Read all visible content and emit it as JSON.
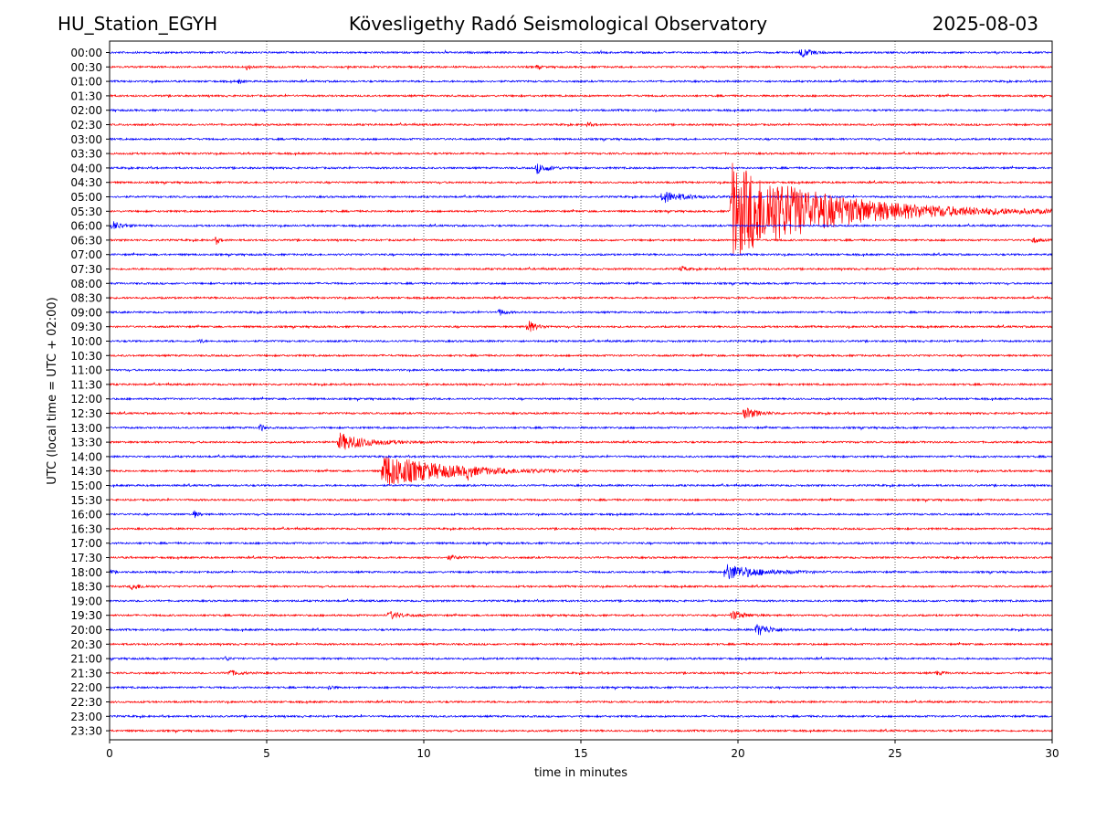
{
  "header": {
    "station": "HU_Station_EGYH",
    "observatory": "Kövesligethy Radó Seismological Observatory",
    "date": "2025-08-03"
  },
  "chart_data": {
    "type": "line",
    "title": "Kövesligethy Radó Seismological Observatory",
    "xlabel": "time in minutes",
    "ylabel": "UTC (local time = UTC + 02:00)",
    "xlim": [
      0,
      30
    ],
    "x_ticks": [
      0,
      5,
      10,
      15,
      20,
      25,
      30
    ],
    "grid": "vertical dotted at x ticks",
    "trace_colors": [
      "#0000ff",
      "#ff0000"
    ],
    "rows": [
      "00:00",
      "00:30",
      "01:00",
      "01:30",
      "02:00",
      "02:30",
      "03:00",
      "03:30",
      "04:00",
      "04:30",
      "05:00",
      "05:30",
      "06:00",
      "06:30",
      "07:00",
      "07:30",
      "08:00",
      "08:30",
      "09:00",
      "09:30",
      "10:00",
      "10:30",
      "11:00",
      "11:30",
      "12:00",
      "12:30",
      "13:00",
      "13:30",
      "14:00",
      "14:30",
      "15:00",
      "15:30",
      "16:00",
      "16:30",
      "17:00",
      "17:30",
      "18:00",
      "18:30",
      "19:00",
      "19:30",
      "20:00",
      "20:30",
      "21:00",
      "21:30",
      "22:00",
      "22:30",
      "23:00",
      "23:30"
    ],
    "events": [
      {
        "row": "00:00",
        "minute": 22.0,
        "amplitude": 0.5,
        "duration": 1.0
      },
      {
        "row": "00:30",
        "minute": 4.4,
        "amplitude": 0.4,
        "duration": 0.2
      },
      {
        "row": "00:30",
        "minute": 13.6,
        "amplitude": 0.25,
        "duration": 0.3
      },
      {
        "row": "01:00",
        "minute": 4.1,
        "amplitude": 0.25,
        "duration": 0.3
      },
      {
        "row": "02:30",
        "minute": 15.2,
        "amplitude": 0.2,
        "duration": 0.6
      },
      {
        "row": "04:00",
        "minute": 13.6,
        "amplitude": 0.5,
        "duration": 1.2
      },
      {
        "row": "05:00",
        "minute": 17.6,
        "amplitude": 0.6,
        "duration": 2.2
      },
      {
        "row": "05:30",
        "minute": 19.8,
        "amplitude": 4.8,
        "duration": 10.2
      },
      {
        "row": "06:00",
        "minute": 0.1,
        "amplitude": 0.45,
        "duration": 1.0
      },
      {
        "row": "06:30",
        "minute": 3.4,
        "amplitude": 0.4,
        "duration": 0.3
      },
      {
        "row": "06:30",
        "minute": 29.4,
        "amplitude": 0.3,
        "duration": 0.6
      },
      {
        "row": "07:30",
        "minute": 18.2,
        "amplitude": 0.3,
        "duration": 0.5
      },
      {
        "row": "09:00",
        "minute": 12.4,
        "amplitude": 0.4,
        "duration": 0.5
      },
      {
        "row": "09:30",
        "minute": 13.3,
        "amplitude": 0.7,
        "duration": 0.8
      },
      {
        "row": "10:00",
        "minute": 2.9,
        "amplitude": 0.3,
        "duration": 0.2
      },
      {
        "row": "12:30",
        "minute": 20.2,
        "amplitude": 0.6,
        "duration": 1.4
      },
      {
        "row": "13:00",
        "minute": 4.8,
        "amplitude": 0.5,
        "duration": 0.3
      },
      {
        "row": "13:30",
        "minute": 7.3,
        "amplitude": 0.9,
        "duration": 3.0
      },
      {
        "row": "14:30",
        "minute": 8.7,
        "amplitude": 1.7,
        "duration": 6.5
      },
      {
        "row": "14:30",
        "minute": 11.4,
        "amplitude": 0.6,
        "duration": 0.3
      },
      {
        "row": "16:00",
        "minute": 2.7,
        "amplitude": 0.35,
        "duration": 0.4
      },
      {
        "row": "17:30",
        "minute": 10.8,
        "amplitude": 0.25,
        "duration": 0.8
      },
      {
        "row": "18:00",
        "minute": 19.6,
        "amplitude": 0.8,
        "duration": 3.5
      },
      {
        "row": "18:00",
        "minute": 0.0,
        "amplitude": 0.3,
        "duration": 0.3
      },
      {
        "row": "18:30",
        "minute": 0.7,
        "amplitude": 0.3,
        "duration": 1.0
      },
      {
        "row": "19:30",
        "minute": 8.9,
        "amplitude": 0.4,
        "duration": 1.2
      },
      {
        "row": "19:30",
        "minute": 19.8,
        "amplitude": 0.5,
        "duration": 1.2
      },
      {
        "row": "20:00",
        "minute": 20.6,
        "amplitude": 0.6,
        "duration": 1.5
      },
      {
        "row": "21:00",
        "minute": 3.7,
        "amplitude": 0.3,
        "duration": 0.3
      },
      {
        "row": "21:30",
        "minute": 3.8,
        "amplitude": 0.3,
        "duration": 1.0
      },
      {
        "row": "21:30",
        "minute": 26.3,
        "amplitude": 0.2,
        "duration": 0.8
      },
      {
        "row": "22:00",
        "minute": 7.0,
        "amplitude": 0.4,
        "duration": 0.3
      }
    ]
  }
}
